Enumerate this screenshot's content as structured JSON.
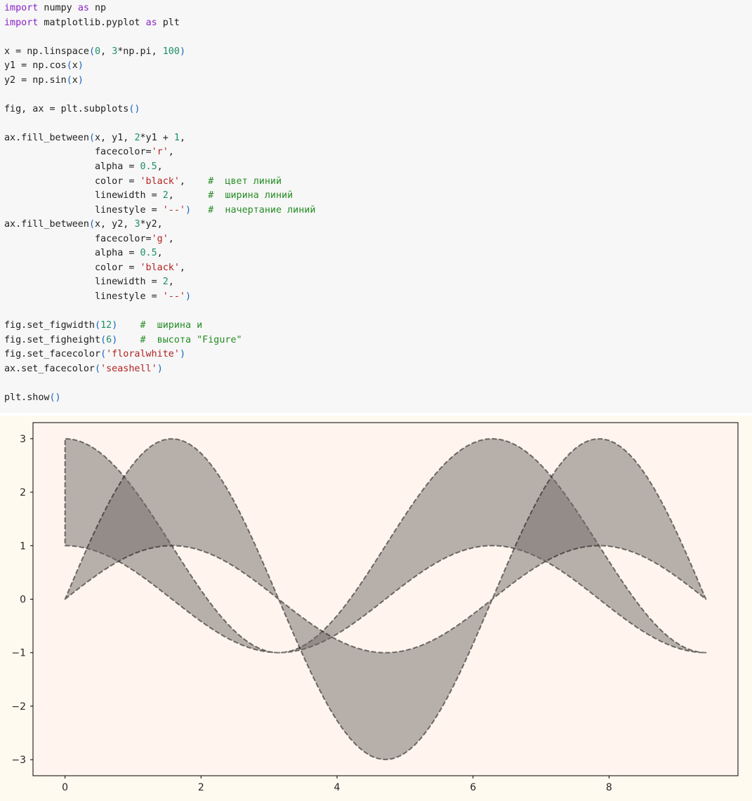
{
  "code": {
    "lines": [
      [
        {
          "t": "import",
          "c": "kw"
        },
        {
          "t": " numpy "
        },
        {
          "t": "as",
          "c": "kw"
        },
        {
          "t": " np"
        }
      ],
      [
        {
          "t": "import",
          "c": "kw"
        },
        {
          "t": " matplotlib.pyplot "
        },
        {
          "t": "as",
          "c": "kw"
        },
        {
          "t": " plt"
        }
      ],
      [],
      [
        {
          "t": "x = np.linspace"
        },
        {
          "t": "(",
          "c": "pn"
        },
        {
          "t": "0",
          "c": "num"
        },
        {
          "t": ", "
        },
        {
          "t": "3",
          "c": "num"
        },
        {
          "t": "*np.pi, "
        },
        {
          "t": "100",
          "c": "num"
        },
        {
          "t": ")",
          "c": "pn"
        }
      ],
      [
        {
          "t": "y1 = np.cos"
        },
        {
          "t": "(",
          "c": "pn"
        },
        {
          "t": "x"
        },
        {
          "t": ")",
          "c": "pn"
        }
      ],
      [
        {
          "t": "y2 = np.sin"
        },
        {
          "t": "(",
          "c": "pn"
        },
        {
          "t": "x"
        },
        {
          "t": ")",
          "c": "pn"
        }
      ],
      [],
      [
        {
          "t": "fig, ax = plt.subplots"
        },
        {
          "t": "()",
          "c": "pn"
        }
      ],
      [],
      [
        {
          "t": "ax.fill_between"
        },
        {
          "t": "(",
          "c": "pn"
        },
        {
          "t": "x, y1, "
        },
        {
          "t": "2",
          "c": "num"
        },
        {
          "t": "*y1 + "
        },
        {
          "t": "1",
          "c": "num"
        },
        {
          "t": ","
        }
      ],
      [
        {
          "t": "                facecolor="
        },
        {
          "t": "'r'",
          "c": "str"
        },
        {
          "t": ","
        }
      ],
      [
        {
          "t": "                alpha = "
        },
        {
          "t": "0.5",
          "c": "num"
        },
        {
          "t": ","
        }
      ],
      [
        {
          "t": "                color = "
        },
        {
          "t": "'black'",
          "c": "str"
        },
        {
          "t": ",    "
        },
        {
          "t": "#  цвет линий",
          "c": "cm"
        }
      ],
      [
        {
          "t": "                linewidth = "
        },
        {
          "t": "2",
          "c": "num"
        },
        {
          "t": ",      "
        },
        {
          "t": "#  ширина линий",
          "c": "cm"
        }
      ],
      [
        {
          "t": "                linestyle = "
        },
        {
          "t": "'--'",
          "c": "str"
        },
        {
          "t": ")",
          "c": "pn"
        },
        {
          "t": "   "
        },
        {
          "t": "#  начертание линий",
          "c": "cm"
        }
      ],
      [
        {
          "t": "ax.fill_between"
        },
        {
          "t": "(",
          "c": "pn"
        },
        {
          "t": "x, y2, "
        },
        {
          "t": "3",
          "c": "num"
        },
        {
          "t": "*y2,"
        }
      ],
      [
        {
          "t": "                facecolor="
        },
        {
          "t": "'g'",
          "c": "str"
        },
        {
          "t": ","
        }
      ],
      [
        {
          "t": "                alpha = "
        },
        {
          "t": "0.5",
          "c": "num"
        },
        {
          "t": ","
        }
      ],
      [
        {
          "t": "                color = "
        },
        {
          "t": "'black'",
          "c": "str"
        },
        {
          "t": ","
        }
      ],
      [
        {
          "t": "                linewidth = "
        },
        {
          "t": "2",
          "c": "num"
        },
        {
          "t": ","
        }
      ],
      [
        {
          "t": "                linestyle = "
        },
        {
          "t": "'--'",
          "c": "str"
        },
        {
          "t": ")",
          "c": "pn"
        }
      ],
      [],
      [
        {
          "t": "fig.set_figwidth"
        },
        {
          "t": "(",
          "c": "pn"
        },
        {
          "t": "12",
          "c": "num"
        },
        {
          "t": ")",
          "c": "pn"
        },
        {
          "t": "    "
        },
        {
          "t": "#  ширина и",
          "c": "cm"
        }
      ],
      [
        {
          "t": "fig.set_figheight"
        },
        {
          "t": "(",
          "c": "pn"
        },
        {
          "t": "6",
          "c": "num"
        },
        {
          "t": ")",
          "c": "pn"
        },
        {
          "t": "    "
        },
        {
          "t": "#  высота \"Figure\"",
          "c": "cm"
        }
      ],
      [
        {
          "t": "fig.set_facecolor"
        },
        {
          "t": "(",
          "c": "pn"
        },
        {
          "t": "'floralwhite'",
          "c": "str"
        },
        {
          "t": ")",
          "c": "pn"
        }
      ],
      [
        {
          "t": "ax.set_facecolor"
        },
        {
          "t": "(",
          "c": "pn"
        },
        {
          "t": "'seashell'",
          "c": "str"
        },
        {
          "t": ")",
          "c": "pn"
        }
      ],
      [],
      [
        {
          "t": "plt.show"
        },
        {
          "t": "()",
          "c": "pn"
        }
      ]
    ]
  },
  "colors": {
    "code_bg": "#f7f7f7",
    "figure_bg": "#fffaf0",
    "axes_bg": "#fff5ee",
    "fill": "#6f6a66",
    "edge": "#000000"
  },
  "chart_data": {
    "type": "area",
    "title": "",
    "xlabel": "",
    "ylabel": "",
    "x_range": [
      0,
      9.42477796
    ],
    "n_points": 100,
    "xlim": [
      -0.471,
      9.896
    ],
    "ylim": [
      -3.3,
      3.3
    ],
    "xticks": [
      0,
      2,
      4,
      6,
      8
    ],
    "yticks": [
      3,
      2,
      1,
      0,
      -1,
      -2,
      -3
    ],
    "xtick_labels": [
      "0",
      "2",
      "4",
      "6",
      "8"
    ],
    "ytick_labels": [
      "3",
      "2",
      "1",
      "0",
      "−1",
      "−2",
      "−3"
    ],
    "series": [
      {
        "name": "fill y1 to 2*y1 + 1",
        "lower": "cos(x)",
        "upper": "2*cos(x) + 1",
        "facecolor": "r",
        "alpha": 0.5,
        "linestyle": "--",
        "linewidth": 2
      },
      {
        "name": "fill y2 to 3*y2",
        "lower": "sin(x)",
        "upper": "3*sin(x)",
        "facecolor": "g",
        "alpha": 0.5,
        "linestyle": "--",
        "linewidth": 2
      }
    ],
    "grid": false,
    "legend": "none"
  }
}
